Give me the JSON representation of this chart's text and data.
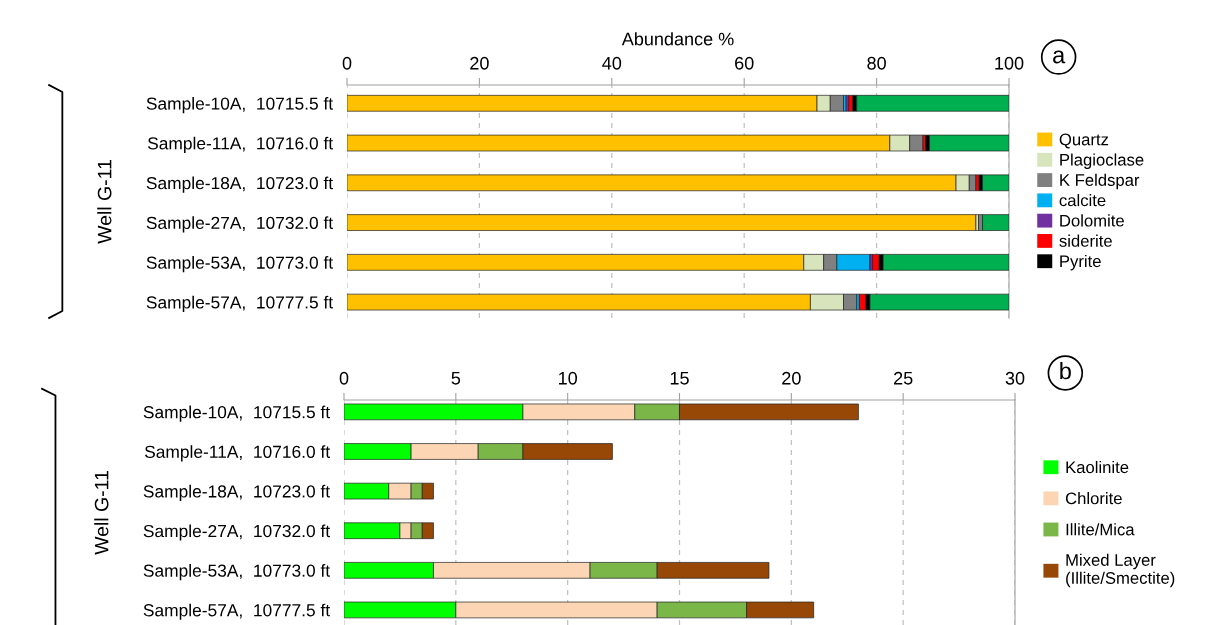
{
  "chart_data": [
    {
      "type": "bar",
      "orientation": "horizontal",
      "stacked": true,
      "xlabel": "Abundance %",
      "ylabel": "Well G-11",
      "annotations": [
        "a"
      ],
      "categories": [
        "Sample-10A,  10715.5 ft",
        "Sample-11A,  10716.0 ft",
        "Sample-18A,  10723.0 ft",
        "Sample-27A,  10732.0 ft",
        "Sample-53A,  10773.0 ft",
        "Sample-57A,  10777.5 ft"
      ],
      "xlim": [
        0,
        100
      ],
      "xticks": [
        0,
        20,
        40,
        60,
        80,
        100
      ],
      "grid": "x",
      "legend": "right",
      "series": [
        {
          "name": "Quartz",
          "color": "#ffc000",
          "values": [
            71,
            82,
            92,
            95,
            69,
            70
          ]
        },
        {
          "name": "Plagioclase",
          "color": "#d8e4bc",
          "values": [
            2,
            3,
            2,
            0.4,
            3,
            5
          ]
        },
        {
          "name": "K Feldspar",
          "color": "#808080",
          "values": [
            2,
            2,
            1,
            0.6,
            2,
            2
          ]
        },
        {
          "name": "calcite",
          "color": "#00b0f0",
          "values": [
            0.4,
            0,
            0,
            0,
            5,
            0.4
          ]
        },
        {
          "name": "Dolomite",
          "color": "#7030a0",
          "values": [
            0.4,
            0,
            0,
            0,
            0.4,
            0
          ]
        },
        {
          "name": "siderite",
          "color": "#ff0000",
          "values": [
            0.6,
            0.4,
            0.5,
            0,
            1,
            1
          ]
        },
        {
          "name": "Pyrite",
          "color": "#000000",
          "values": [
            0.6,
            0.6,
            0.5,
            0,
            0.6,
            0.6
          ]
        },
        {
          "color": "#00b050",
          "values": [
            23,
            12,
            4,
            4,
            19,
            21
          ]
        }
      ]
    },
    {
      "type": "bar",
      "orientation": "horizontal",
      "stacked": true,
      "ylabel": "Well G-11",
      "annotations": [
        "b"
      ],
      "categories": [
        "Sample-10A,  10715.5 ft",
        "Sample-11A,  10716.0 ft",
        "Sample-18A,  10723.0 ft",
        "Sample-27A,  10732.0 ft",
        "Sample-53A,  10773.0 ft",
        "Sample-57A,  10777.5 ft"
      ],
      "xlim": [
        0,
        30
      ],
      "xticks": [
        0,
        5,
        10,
        15,
        20,
        25,
        30
      ],
      "grid": "x",
      "legend": "right",
      "series": [
        {
          "name": "Kaolinite",
          "color": "#00ff00",
          "values": [
            8,
            3,
            2,
            2.5,
            4,
            5
          ]
        },
        {
          "name": "Chlorite",
          "color": "#fcd5b5",
          "values": [
            5,
            3,
            1,
            0.5,
            7,
            9
          ]
        },
        {
          "name": "Illite/Mica",
          "color": "#7ab648",
          "values": [
            2,
            2,
            0.5,
            0.5,
            3,
            4
          ]
        },
        {
          "name": "Mixed Layer\n(Illite/Smectite)",
          "color": "#974706",
          "values": [
            8,
            4,
            0.5,
            0.5,
            5,
            3
          ]
        }
      ]
    }
  ]
}
